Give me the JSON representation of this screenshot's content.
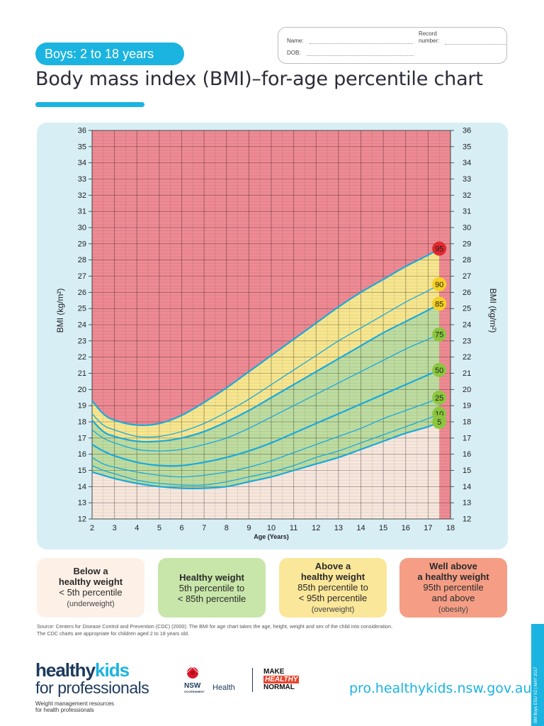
{
  "header": {
    "subtitle": "Boys: 2 to 18 years",
    "title": "Body mass index (BMI)–for-age percentile chart",
    "record": {
      "name_label": "Name:",
      "dob_label": "DOB:",
      "record_label_1": "Record",
      "record_label_2": "number:"
    }
  },
  "chart_data": {
    "type": "line",
    "xlabel": "Age (Years)",
    "ylabel": "BMI (kg/m²)",
    "xlim": [
      2,
      18
    ],
    "ylim": [
      12,
      36
    ],
    "x_ticks": [
      2,
      3,
      4,
      5,
      6,
      7,
      8,
      9,
      10,
      11,
      12,
      13,
      14,
      15,
      16,
      17,
      18
    ],
    "y_ticks": [
      12,
      13,
      14,
      15,
      16,
      17,
      18,
      19,
      20,
      21,
      22,
      23,
      24,
      25,
      26,
      27,
      28,
      29,
      30,
      31,
      32,
      33,
      34,
      35,
      36
    ],
    "grid": true,
    "zones": [
      {
        "name": "Well above a healthy weight",
        "color": "#ee8a93"
      },
      {
        "name": "Above a healthy weight",
        "color": "#f7e68f"
      },
      {
        "name": "Healthy weight",
        "color": "#bedca0"
      },
      {
        "name": "Below a healthy weight",
        "color": "#f6e6dc"
      }
    ],
    "x": [
      2,
      2.5,
      3,
      4,
      5,
      6,
      7,
      8,
      9,
      10,
      11,
      12,
      13,
      14,
      15,
      16,
      17,
      17.5
    ],
    "series": [
      {
        "name": "95",
        "badge_color": "#e0292e",
        "values": [
          19.3,
          18.5,
          18.1,
          17.8,
          17.9,
          18.4,
          19.2,
          20.1,
          21.1,
          22.1,
          23.1,
          24.1,
          25.1,
          26.0,
          26.8,
          27.6,
          28.3,
          28.7
        ]
      },
      {
        "name": "90",
        "badge_color": "#f6d024",
        "values": [
          18.5,
          17.8,
          17.5,
          17.1,
          17.1,
          17.4,
          17.9,
          18.6,
          19.4,
          20.3,
          21.2,
          22.1,
          23.0,
          23.8,
          24.6,
          25.4,
          26.1,
          26.5
        ]
      },
      {
        "name": "85",
        "badge_color": "#f6d024",
        "values": [
          18.1,
          17.4,
          17.1,
          16.8,
          16.8,
          17.0,
          17.4,
          18.0,
          18.7,
          19.5,
          20.3,
          21.1,
          21.9,
          22.7,
          23.5,
          24.2,
          24.9,
          25.3
        ]
      },
      {
        "name": "75",
        "badge_color": "#8cc63f",
        "values": [
          17.5,
          17.0,
          16.7,
          16.3,
          16.2,
          16.3,
          16.6,
          17.0,
          17.6,
          18.3,
          19.0,
          19.7,
          20.4,
          21.1,
          21.8,
          22.5,
          23.1,
          23.4
        ]
      },
      {
        "name": "50",
        "badge_color": "#8cc63f",
        "values": [
          16.6,
          16.2,
          15.9,
          15.5,
          15.3,
          15.3,
          15.5,
          15.8,
          16.2,
          16.7,
          17.3,
          17.9,
          18.5,
          19.1,
          19.7,
          20.3,
          20.9,
          21.2
        ]
      },
      {
        "name": "25",
        "badge_color": "#8cc63f",
        "values": [
          15.8,
          15.4,
          15.2,
          14.9,
          14.7,
          14.6,
          14.7,
          14.9,
          15.2,
          15.6,
          16.1,
          16.6,
          17.1,
          17.6,
          18.2,
          18.7,
          19.2,
          19.5
        ]
      },
      {
        "name": "10",
        "badge_color": "#8cc63f",
        "values": [
          15.3,
          15.0,
          14.8,
          14.4,
          14.2,
          14.1,
          14.1,
          14.3,
          14.6,
          14.9,
          15.3,
          15.8,
          16.2,
          16.7,
          17.2,
          17.7,
          18.2,
          18.5
        ]
      },
      {
        "name": "5",
        "badge_color": "#8cc63f",
        "values": [
          14.9,
          14.7,
          14.5,
          14.2,
          14.0,
          13.9,
          13.9,
          14.0,
          14.3,
          14.6,
          15.0,
          15.4,
          15.8,
          16.3,
          16.8,
          17.3,
          17.7,
          18.0
        ]
      }
    ]
  },
  "categories": [
    {
      "title_1": "Below a",
      "title_2": "healthy weight",
      "line_1": "< 5th percentile",
      "line_2": "",
      "sub": "(underweight)",
      "color": "#fdf1e7"
    },
    {
      "title_1": "Healthy weight",
      "title_2": "",
      "line_1": "5th percentile to",
      "line_2": "< 85th percentile",
      "sub": "",
      "color": "#c8e6a9"
    },
    {
      "title_1": "Above a",
      "title_2": "healthy weight",
      "line_1": "85th percentile to",
      "line_2": "< 95th percentile",
      "sub": "(overweight)",
      "color": "#fbe79a"
    },
    {
      "title_1": "Well above",
      "title_2": "a healthy weight",
      "line_1": "95th percentile",
      "line_2": "and above",
      "sub": "(obesity)",
      "color": "#f59e85"
    }
  ],
  "footer": {
    "source_1": "Source: Centers for Disease Control and Prevention (CDC) (2000). The BMI for age chart takes the age, height, weight and sex of the child into consideration.",
    "source_2": "The CDC charts are appropriate for children aged 2 to 18 years old.",
    "hk_1": "healthy",
    "hk_2": "kids",
    "hk_3": "for professionals",
    "hk_tag_1": "Weight management resources",
    "hk_tag_2": "for health professionals",
    "nsw": "NSW",
    "nsw_gov": "GOVERNMENT",
    "health": "Health",
    "mhn_1": "MAKE",
    "mhn_2": "HEALTHY",
    "mhn_3": "NORMAL",
    "url": "pro.healthykids.nsw.gov.au",
    "doc_code": "BM Boys ESU V2 | MAY 2017"
  }
}
